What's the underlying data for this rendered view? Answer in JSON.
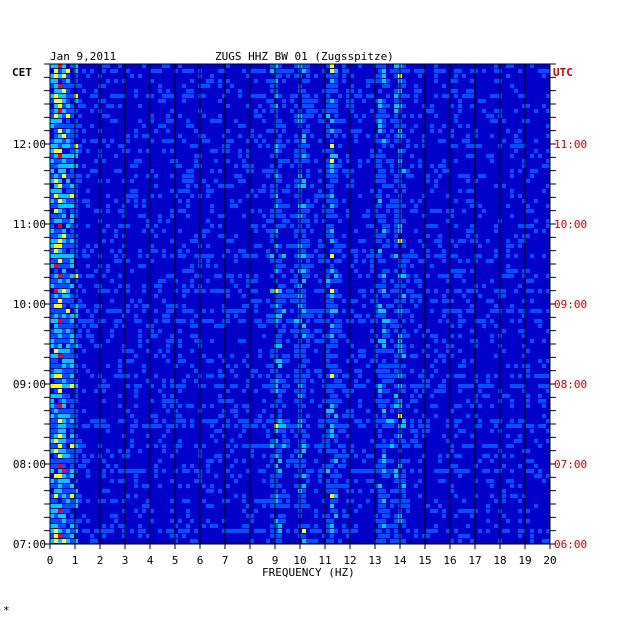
{
  "header": {
    "date": "Jan 9,2011",
    "station": "ZUGS HHZ BW 01 (Zugsspitze)",
    "left_tz": "CET",
    "right_tz": "UTC"
  },
  "colors": {
    "background": "#0000c8",
    "right_axis_text": "#cc0000",
    "frame": "#000000"
  },
  "footer_mark": "*",
  "chart_data": {
    "type": "heatmap",
    "title": "ZUGS HHZ BW 01 (Zugsspitze)",
    "xlabel": "FREQUENCY (HZ)",
    "ylabel_left": "CET",
    "ylabel_right": "UTC",
    "xlim": [
      0,
      20
    ],
    "x_ticks": [
      "0",
      "1",
      "2",
      "3",
      "4",
      "5",
      "6",
      "7",
      "8",
      "9",
      "10",
      "11",
      "12",
      "13",
      "14",
      "15",
      "16",
      "17",
      "18",
      "19",
      "20"
    ],
    "y_ticks_left": [
      "12:00",
      "11:00",
      "10:00",
      "09:00",
      "08:00",
      "07:00"
    ],
    "y_ticks_right": [
      "11:00",
      "10:00",
      "09:00",
      "08:00",
      "07:00",
      "06:00"
    ],
    "colorscale": [
      "#0000c8",
      "#0050ff",
      "#00c8ff",
      "#ffff00",
      "#ff0000"
    ],
    "grid": true,
    "dominant_frequency_bands_hz": [
      0.3,
      9,
      10,
      11.2,
      13.2,
      13.9
    ]
  }
}
